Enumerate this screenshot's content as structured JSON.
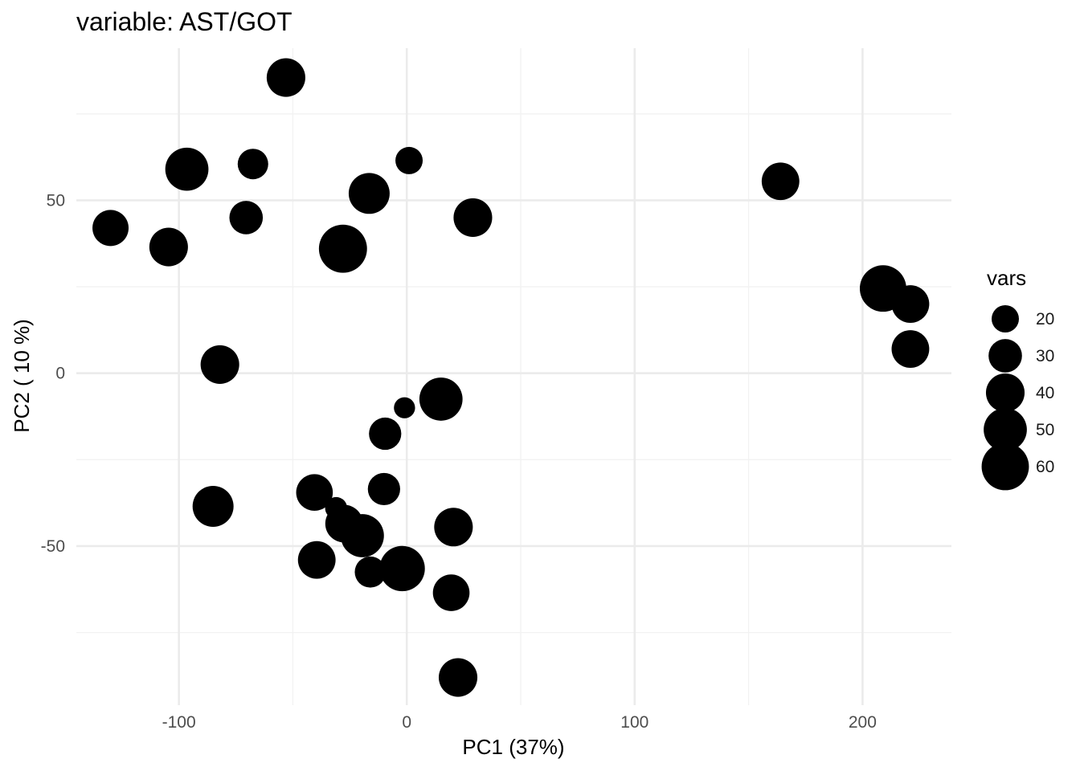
{
  "chart_data": {
    "type": "scatter",
    "title": "variable: AST/GOT",
    "xlabel": "PC1 (37%)",
    "ylabel": "PC2 ( 10 %)",
    "xlim": [
      -145,
      239
    ],
    "ylim": [
      -96,
      94
    ],
    "x_ticks": [
      -100,
      0,
      100,
      200
    ],
    "y_ticks": [
      -50,
      0,
      50
    ],
    "grid": true,
    "point_color": "#000000",
    "size_legend": {
      "title": "vars",
      "placement": "right",
      "values": [
        20,
        30,
        40,
        50,
        60
      ]
    },
    "points": [
      {
        "x": -53,
        "y": 85.5,
        "size": 40
      },
      {
        "x": -96.5,
        "y": 59,
        "size": 50
      },
      {
        "x": -67.5,
        "y": 60.5,
        "size": 25
      },
      {
        "x": 1,
        "y": 61.5,
        "size": 20
      },
      {
        "x": -16.5,
        "y": 52,
        "size": 45
      },
      {
        "x": -130,
        "y": 42,
        "size": 35
      },
      {
        "x": -70.5,
        "y": 45,
        "size": 30
      },
      {
        "x": 29,
        "y": 45,
        "size": 40
      },
      {
        "x": -104.5,
        "y": 36.5,
        "size": 40
      },
      {
        "x": -28,
        "y": 36,
        "size": 62
      },
      {
        "x": 164,
        "y": 55.5,
        "size": 38
      },
      {
        "x": 209,
        "y": 24.5,
        "size": 58
      },
      {
        "x": 221,
        "y": 20,
        "size": 38
      },
      {
        "x": 221,
        "y": 7,
        "size": 38
      },
      {
        "x": -82,
        "y": 2.5,
        "size": 40
      },
      {
        "x": 15,
        "y": -7.5,
        "size": 50
      },
      {
        "x": -1,
        "y": -10,
        "size": 12
      },
      {
        "x": -9.5,
        "y": -17.5,
        "size": 28
      },
      {
        "x": -85,
        "y": -38.5,
        "size": 45
      },
      {
        "x": -40.5,
        "y": -34.5,
        "size": 36
      },
      {
        "x": -10,
        "y": -33.5,
        "size": 28
      },
      {
        "x": -31,
        "y": -39,
        "size": 13
      },
      {
        "x": -27.5,
        "y": -43.5,
        "size": 38
      },
      {
        "x": -19.5,
        "y": -47,
        "size": 50
      },
      {
        "x": 20.5,
        "y": -44.5,
        "size": 40
      },
      {
        "x": -39.5,
        "y": -54,
        "size": 38
      },
      {
        "x": -16,
        "y": -57.5,
        "size": 26
      },
      {
        "x": -2,
        "y": -56.5,
        "size": 55
      },
      {
        "x": 19.5,
        "y": -63.5,
        "size": 36
      },
      {
        "x": 22.5,
        "y": -88,
        "size": 40
      }
    ]
  }
}
